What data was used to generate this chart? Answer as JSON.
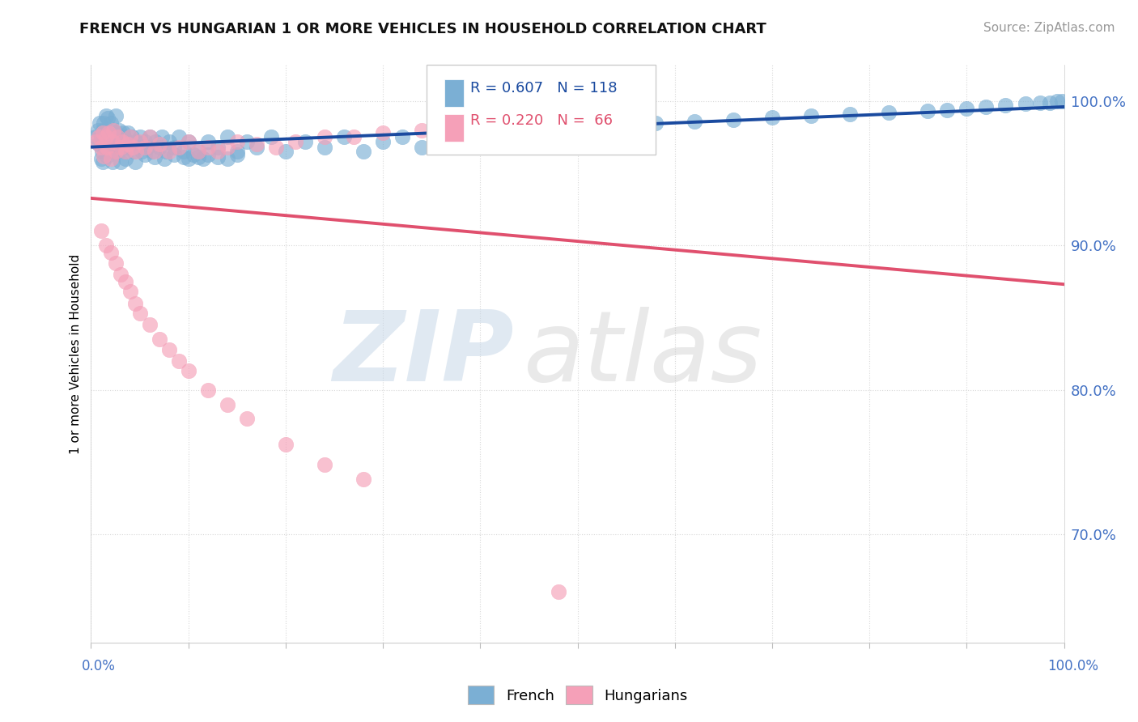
{
  "title": "FRENCH VS HUNGARIAN 1 OR MORE VEHICLES IN HOUSEHOLD CORRELATION CHART",
  "source": "Source: ZipAtlas.com",
  "ylabel": "1 or more Vehicles in Household",
  "legend_french_r": "R = 0.607",
  "legend_french_n": "N = 118",
  "legend_hung_r": "R = 0.220",
  "legend_hung_n": "N =  66",
  "french_color": "#7bafd4",
  "hungarian_color": "#f5a0b8",
  "french_line_color": "#1a4a9f",
  "hungarian_line_color": "#e0506e",
  "r_french": 0.607,
  "n_french": 118,
  "r_hungarian": 0.22,
  "n_hungarian": 66,
  "xlim": [
    0.0,
    1.0
  ],
  "ylim": [
    0.625,
    1.025
  ],
  "y_ticks": [
    0.7,
    0.8,
    0.9,
    1.0
  ],
  "tick_color": "#4472c4",
  "grid_color": "#d8d8d8",
  "title_fontsize": 13,
  "source_fontsize": 11,
  "scatter_size": 180,
  "scatter_alpha": 0.65,
  "french_scatter_x": [
    0.005,
    0.007,
    0.008,
    0.009,
    0.01,
    0.01,
    0.011,
    0.012,
    0.012,
    0.013,
    0.013,
    0.014,
    0.015,
    0.015,
    0.016,
    0.017,
    0.017,
    0.018,
    0.018,
    0.019,
    0.02,
    0.02,
    0.021,
    0.022,
    0.022,
    0.023,
    0.024,
    0.025,
    0.025,
    0.026,
    0.027,
    0.028,
    0.029,
    0.03,
    0.031,
    0.032,
    0.033,
    0.034,
    0.035,
    0.036,
    0.037,
    0.038,
    0.04,
    0.042,
    0.044,
    0.046,
    0.048,
    0.05,
    0.052,
    0.055,
    0.058,
    0.06,
    0.063,
    0.066,
    0.07,
    0.073,
    0.077,
    0.08,
    0.085,
    0.09,
    0.095,
    0.1,
    0.11,
    0.12,
    0.13,
    0.14,
    0.15,
    0.16,
    0.17,
    0.185,
    0.2,
    0.22,
    0.24,
    0.26,
    0.28,
    0.3,
    0.32,
    0.34,
    0.36,
    0.38,
    0.4,
    0.42,
    0.44,
    0.46,
    0.5,
    0.54,
    0.58,
    0.62,
    0.66,
    0.7,
    0.74,
    0.78,
    0.82,
    0.86,
    0.88,
    0.9,
    0.92,
    0.94,
    0.96,
    0.975,
    0.985,
    0.993,
    0.998,
    0.035,
    0.045,
    0.055,
    0.065,
    0.075,
    0.085,
    0.095,
    0.1,
    0.105,
    0.11,
    0.115,
    0.12,
    0.13,
    0.14,
    0.15
  ],
  "french_scatter_y": [
    0.975,
    0.98,
    0.97,
    0.985,
    0.96,
    0.975,
    0.965,
    0.98,
    0.958,
    0.972,
    0.985,
    0.968,
    0.978,
    0.99,
    0.962,
    0.975,
    0.988,
    0.965,
    0.978,
    0.97,
    0.972,
    0.985,
    0.968,
    0.98,
    0.958,
    0.975,
    0.965,
    0.978,
    0.99,
    0.97,
    0.975,
    0.965,
    0.98,
    0.958,
    0.972,
    0.968,
    0.978,
    0.975,
    0.965,
    0.972,
    0.968,
    0.978,
    0.97,
    0.975,
    0.965,
    0.972,
    0.968,
    0.975,
    0.965,
    0.972,
    0.968,
    0.975,
    0.965,
    0.972,
    0.968,
    0.975,
    0.965,
    0.972,
    0.968,
    0.975,
    0.965,
    0.972,
    0.965,
    0.972,
    0.968,
    0.975,
    0.965,
    0.972,
    0.968,
    0.975,
    0.965,
    0.972,
    0.968,
    0.975,
    0.965,
    0.972,
    0.975,
    0.968,
    0.975,
    0.978,
    0.975,
    0.978,
    0.978,
    0.98,
    0.982,
    0.984,
    0.985,
    0.986,
    0.987,
    0.989,
    0.99,
    0.991,
    0.992,
    0.993,
    0.994,
    0.995,
    0.996,
    0.997,
    0.998,
    0.999,
    0.999,
    1.0,
    1.0,
    0.96,
    0.958,
    0.963,
    0.961,
    0.96,
    0.963,
    0.961,
    0.96,
    0.963,
    0.961,
    0.96,
    0.963,
    0.961,
    0.96,
    0.963
  ],
  "hungarian_scatter_x": [
    0.005,
    0.008,
    0.01,
    0.012,
    0.013,
    0.015,
    0.016,
    0.018,
    0.02,
    0.022,
    0.023,
    0.025,
    0.027,
    0.03,
    0.032,
    0.035,
    0.038,
    0.04,
    0.043,
    0.046,
    0.05,
    0.055,
    0.06,
    0.065,
    0.07,
    0.08,
    0.09,
    0.1,
    0.11,
    0.12,
    0.13,
    0.14,
    0.15,
    0.17,
    0.19,
    0.21,
    0.24,
    0.27,
    0.3,
    0.34,
    0.38,
    0.42,
    0.47,
    0.52,
    0.57,
    0.01,
    0.015,
    0.02,
    0.025,
    0.03,
    0.035,
    0.04,
    0.045,
    0.05,
    0.06,
    0.07,
    0.08,
    0.09,
    0.1,
    0.12,
    0.14,
    0.16,
    0.2,
    0.24,
    0.28,
    0.48
  ],
  "hungarian_scatter_y": [
    0.972,
    0.975,
    0.968,
    0.978,
    0.962,
    0.975,
    0.968,
    0.978,
    0.96,
    0.972,
    0.98,
    0.965,
    0.975,
    0.968,
    0.972,
    0.965,
    0.97,
    0.975,
    0.968,
    0.965,
    0.972,
    0.968,
    0.975,
    0.965,
    0.97,
    0.965,
    0.968,
    0.972,
    0.965,
    0.968,
    0.965,
    0.968,
    0.972,
    0.97,
    0.968,
    0.972,
    0.975,
    0.975,
    0.978,
    0.98,
    0.982,
    0.98,
    0.985,
    0.98,
    0.982,
    0.91,
    0.9,
    0.895,
    0.888,
    0.88,
    0.875,
    0.868,
    0.86,
    0.853,
    0.845,
    0.835,
    0.828,
    0.82,
    0.813,
    0.8,
    0.79,
    0.78,
    0.762,
    0.748,
    0.738,
    0.66
  ]
}
